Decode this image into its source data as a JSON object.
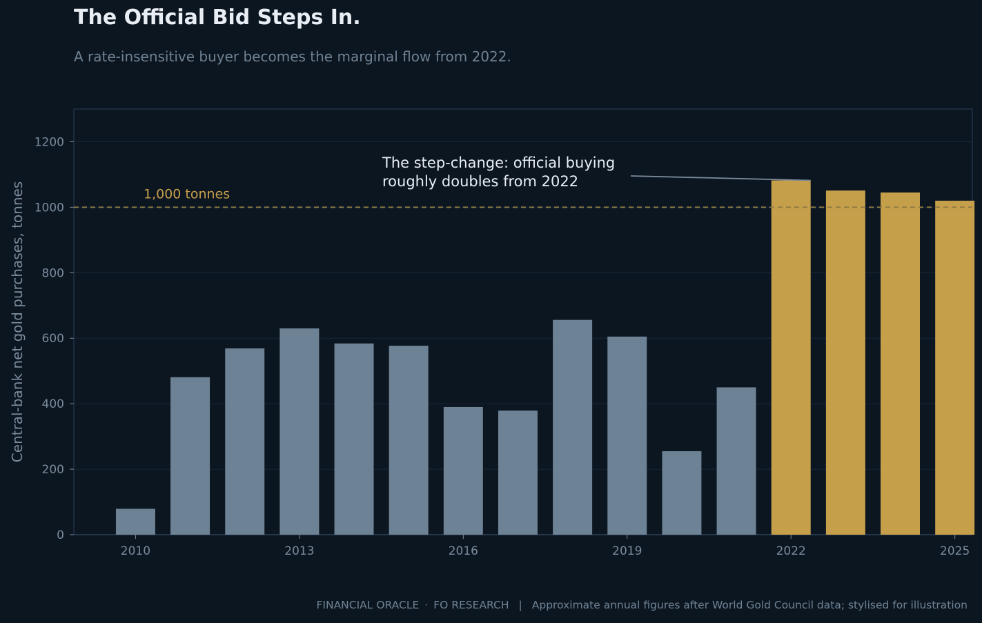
{
  "header": {
    "title": "The Official Bid Steps In.",
    "subtitle": "A rate-insensitive buyer becomes the marginal flow from 2022."
  },
  "footer": {
    "brand": "FINANCIAL ORACLE",
    "desk": "FO RESEARCH",
    "source": "Approximate annual figures after World Gold Council data; stylised for illustration"
  },
  "colors": {
    "background": "#0c1621",
    "bar_base": "#6d8295",
    "bar_highlight": "#c69f4b",
    "reference_line": "#8f7a45",
    "grid": "#17263a",
    "axis_text": "#7a8b9c"
  },
  "chart_data": {
    "type": "bar",
    "title": "The Official Bid Steps In.",
    "subtitle": "A rate-insensitive buyer becomes the marginal flow from 2022.",
    "xlabel": "",
    "ylabel": "Central-bank net gold purchases, tonnes",
    "categories": [
      2010,
      2011,
      2012,
      2013,
      2014,
      2015,
      2016,
      2017,
      2018,
      2019,
      2020,
      2021,
      2022,
      2023,
      2024,
      2025
    ],
    "values": [
      79,
      481,
      569,
      630,
      584,
      577,
      390,
      379,
      656,
      605,
      255,
      450,
      1082,
      1051,
      1045,
      1020
    ],
    "highlight_from": 2022,
    "ylim": [
      0,
      1300
    ],
    "yticks": [
      0,
      200,
      400,
      600,
      800,
      1000,
      1200
    ],
    "xticks": [
      2010,
      2013,
      2016,
      2019,
      2022,
      2025
    ],
    "grid": "horizontal",
    "reference_line": {
      "value": 1000,
      "label": "1,000 tonnes",
      "style": "dashed"
    },
    "annotation": {
      "lines": [
        "The step-change: official buying",
        "roughly doubles from 2022"
      ],
      "points_to": 2022
    }
  }
}
